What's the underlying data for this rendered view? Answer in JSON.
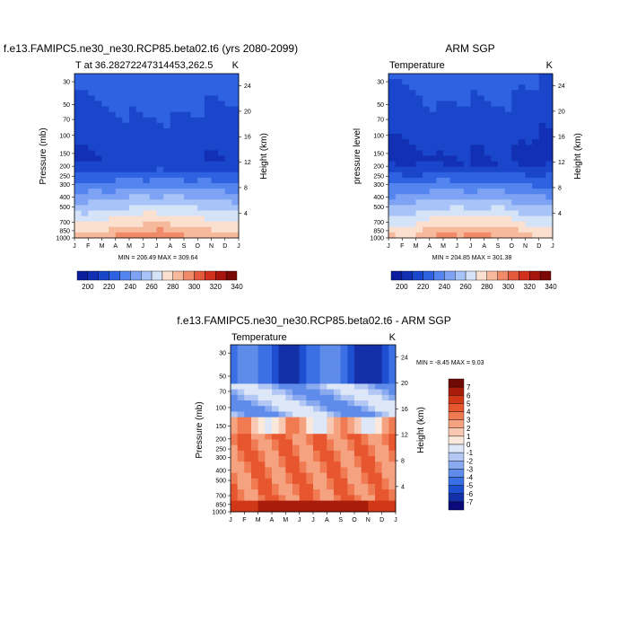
{
  "chart_data": [
    {
      "type": "heatmap",
      "title": "f.e13.FAMIPC5.ne30_ne30.RCP85.beta02.t6 (yrs 2080-2099)",
      "subtitle_left": "T at 36.28272247314453,262.5",
      "subtitle_right": "K",
      "ylabel": "Pressure (mb)",
      "ylabel_right": "Height (km)",
      "x_ticks": [
        "J",
        "F",
        "M",
        "A",
        "M",
        "J",
        "J",
        "A",
        "S",
        "O",
        "N",
        "D",
        "J"
      ],
      "y_ticks": [
        "30",
        "50",
        "70",
        "100",
        "150",
        "200",
        "250",
        "300",
        "400",
        "500",
        "700",
        "850",
        "1000"
      ],
      "y_right_ticks": [
        "24",
        "20",
        "16",
        "12",
        "8",
        "4"
      ],
      "stats": "MIN = 206.49 MAX = 309.64",
      "colorbar_labels": [
        "200",
        "220",
        "240",
        "260",
        "280",
        "300",
        "320",
        "340"
      ]
    },
    {
      "type": "heatmap",
      "title": "ARM SGP",
      "subtitle_left": "Temperature",
      "subtitle_right": "K",
      "ylabel": "pressure level",
      "ylabel_right": "Height (km)",
      "x_ticks": [
        "J",
        "F",
        "M",
        "A",
        "M",
        "J",
        "J",
        "A",
        "S",
        "O",
        "N",
        "D",
        "J"
      ],
      "y_ticks": [
        "30",
        "50",
        "70",
        "100",
        "150",
        "200",
        "250",
        "300",
        "400",
        "500",
        "700",
        "850",
        "1000"
      ],
      "y_right_ticks": [
        "24",
        "20",
        "16",
        "12",
        "8",
        "4"
      ],
      "stats": "MIN = 204.85 MAX = 301.38",
      "colorbar_labels": [
        "200",
        "220",
        "240",
        "260",
        "280",
        "300",
        "320",
        "340"
      ]
    },
    {
      "type": "heatmap",
      "title": "f.e13.FAMIPC5.ne30_ne30.RCP85.beta02.t6 - ARM SGP",
      "subtitle_left": "Temperature",
      "subtitle_right": "K",
      "ylabel": "Pressure (mb)",
      "ylabel_right": "Height (km)",
      "x_ticks": [
        "J",
        "F",
        "M",
        "A",
        "M",
        "J",
        "J",
        "A",
        "S",
        "O",
        "N",
        "D",
        "J"
      ],
      "y_ticks": [
        "30",
        "50",
        "70",
        "100",
        "150",
        "200",
        "250",
        "300",
        "400",
        "500",
        "700",
        "850",
        "1000"
      ],
      "y_right_ticks": [
        "24",
        "20",
        "16",
        "12",
        "8",
        "4"
      ],
      "stats": "MIN =  -8.45 MAX =   9.03",
      "colorbar_labels": [
        "7",
        "6",
        "5",
        "4",
        "3",
        "2",
        "1",
        "0",
        "-1",
        "-2",
        "-3",
        "-4",
        "-5",
        "-6",
        "-7"
      ]
    }
  ],
  "colors": {
    "abs_scale": [
      "#0a1e9e",
      "#1230b4",
      "#1a46cc",
      "#2e62e0",
      "#5484ee",
      "#7ea3f4",
      "#a8c3f7",
      "#d4e3f8",
      "#fbe0d0",
      "#f7b99c",
      "#f08a68",
      "#e55a3c",
      "#d2301e",
      "#a8150e",
      "#7a0906"
    ],
    "diff_scale": [
      "#0a0a7a",
      "#1430a8",
      "#1e4fd0",
      "#3a70e4",
      "#5f8cea",
      "#8aaaf0",
      "#b2c7f4",
      "#dde7f8",
      "#fbe8dc",
      "#f8c8b2",
      "#f5a280",
      "#f07a52",
      "#e7562e",
      "#d03818",
      "#a81c0c",
      "#700a04"
    ]
  }
}
